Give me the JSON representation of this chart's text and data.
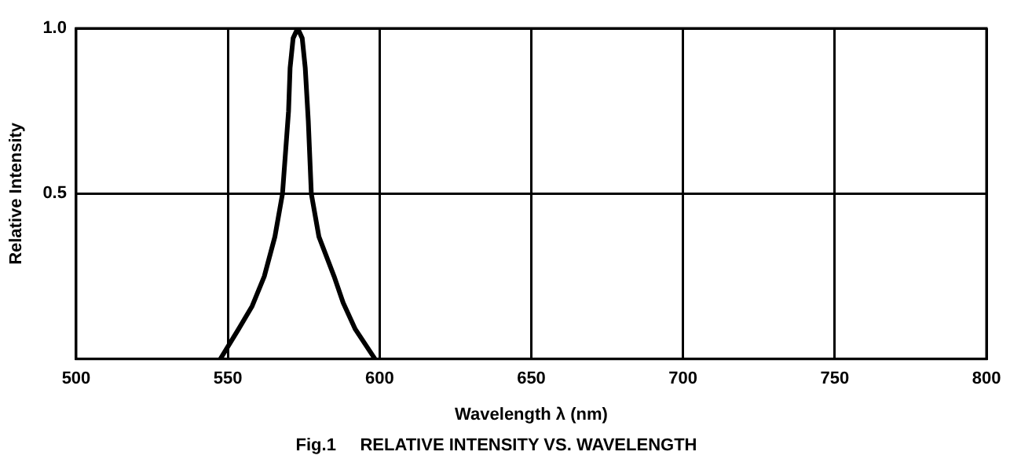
{
  "chart_data": {
    "type": "line",
    "title": "Fig.1     RELATIVE INTENSITY VS. WAVELENGTH",
    "xlabel": "Wavelength λ (nm)",
    "ylabel": "Relative Intensity",
    "x": [
      547.5,
      553.5,
      558,
      562,
      565.5,
      568,
      570,
      570.5,
      571.5,
      573,
      574.5,
      575.5,
      576.5,
      577.5,
      580,
      585,
      588,
      592,
      598.5
    ],
    "series": [
      {
        "color": "#000000",
        "values": [
          0,
          0.09,
          0.16,
          0.25,
          0.37,
          0.5,
          0.75,
          0.88,
          0.97,
          1.0,
          0.97,
          0.88,
          0.72,
          0.5,
          0.37,
          0.25,
          0.17,
          0.09,
          0
        ]
      }
    ],
    "xlim": [
      500,
      800
    ],
    "xticks": [
      500,
      550,
      600,
      650,
      700,
      750,
      800
    ],
    "ylim": [
      0,
      1
    ],
    "yticks": [
      {
        "value": 0,
        "label": null
      },
      {
        "value": 0.5,
        "label": "0.5"
      },
      {
        "value": 1,
        "label": "1.0"
      }
    ],
    "grid": true,
    "legend": false,
    "marker": "none",
    "line_style": "solid"
  }
}
